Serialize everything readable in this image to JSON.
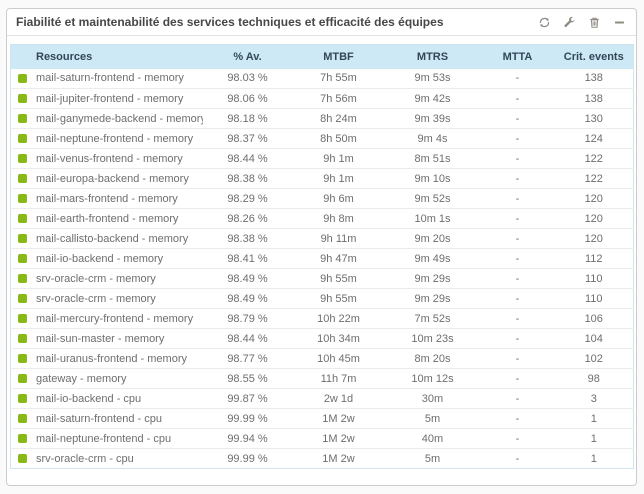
{
  "widget": {
    "title": "Fiabilité et maintenabilité des services techniques et efficacité des équipes",
    "toolbar": {
      "refresh": "refresh",
      "configure": "configure",
      "delete": "delete",
      "collapse": "collapse"
    }
  },
  "table": {
    "columns": [
      "Resources",
      "% Av.",
      "MTBF",
      "MTRS",
      "MTTA",
      "Crit. events"
    ],
    "rows": [
      {
        "status": "ok",
        "resource": "mail-saturn-frontend - memory",
        "availability": "98.03 %",
        "mtbf": "7h 55m",
        "mtrs": "9m 53s",
        "mtta": "-",
        "crit_events": "138"
      },
      {
        "status": "ok",
        "resource": "mail-jupiter-frontend - memory",
        "availability": "98.06 %",
        "mtbf": "7h 56m",
        "mtrs": "9m 42s",
        "mtta": "-",
        "crit_events": "138"
      },
      {
        "status": "ok",
        "resource": "mail-ganymede-backend - memory",
        "availability": "98.18 %",
        "mtbf": "8h 24m",
        "mtrs": "9m 39s",
        "mtta": "-",
        "crit_events": "130"
      },
      {
        "status": "ok",
        "resource": "mail-neptune-frontend - memory",
        "availability": "98.37 %",
        "mtbf": "8h 50m",
        "mtrs": "9m 4s",
        "mtta": "-",
        "crit_events": "124"
      },
      {
        "status": "ok",
        "resource": "mail-venus-frontend - memory",
        "availability": "98.44 %",
        "mtbf": "9h 1m",
        "mtrs": "8m 51s",
        "mtta": "-",
        "crit_events": "122"
      },
      {
        "status": "ok",
        "resource": "mail-europa-backend - memory",
        "availability": "98.38 %",
        "mtbf": "9h 1m",
        "mtrs": "9m 10s",
        "mtta": "-",
        "crit_events": "122"
      },
      {
        "status": "ok",
        "resource": "mail-mars-frontend - memory",
        "availability": "98.29 %",
        "mtbf": "9h 6m",
        "mtrs": "9m 52s",
        "mtta": "-",
        "crit_events": "120"
      },
      {
        "status": "ok",
        "resource": "mail-earth-frontend - memory",
        "availability": "98.26 %",
        "mtbf": "9h 8m",
        "mtrs": "10m 1s",
        "mtta": "-",
        "crit_events": "120"
      },
      {
        "status": "ok",
        "resource": "mail-callisto-backend - memory",
        "availability": "98.38 %",
        "mtbf": "9h 11m",
        "mtrs": "9m 20s",
        "mtta": "-",
        "crit_events": "120"
      },
      {
        "status": "ok",
        "resource": "mail-io-backend - memory",
        "availability": "98.41 %",
        "mtbf": "9h 47m",
        "mtrs": "9m 49s",
        "mtta": "-",
        "crit_events": "112"
      },
      {
        "status": "ok",
        "resource": "srv-oracle-crm - memory",
        "availability": "98.49 %",
        "mtbf": "9h 55m",
        "mtrs": "9m 29s",
        "mtta": "-",
        "crit_events": "110"
      },
      {
        "status": "ok",
        "resource": "srv-oracle-crm - memory",
        "availability": "98.49 %",
        "mtbf": "9h 55m",
        "mtrs": "9m 29s",
        "mtta": "-",
        "crit_events": "110"
      },
      {
        "status": "ok",
        "resource": "mail-mercury-frontend - memory",
        "availability": "98.79 %",
        "mtbf": "10h 22m",
        "mtrs": "7m 52s",
        "mtta": "-",
        "crit_events": "106"
      },
      {
        "status": "ok",
        "resource": "mail-sun-master - memory",
        "availability": "98.44 %",
        "mtbf": "10h 34m",
        "mtrs": "10m 23s",
        "mtta": "-",
        "crit_events": "104"
      },
      {
        "status": "ok",
        "resource": "mail-uranus-frontend - memory",
        "availability": "98.77 %",
        "mtbf": "10h 45m",
        "mtrs": "8m 20s",
        "mtta": "-",
        "crit_events": "102"
      },
      {
        "status": "ok",
        "resource": "gateway - memory",
        "availability": "98.55 %",
        "mtbf": "11h 7m",
        "mtrs": "10m 12s",
        "mtta": "-",
        "crit_events": "98"
      },
      {
        "status": "ok",
        "resource": "mail-io-backend - cpu",
        "availability": "99.87 %",
        "mtbf": "2w 1d",
        "mtrs": "30m",
        "mtta": "-",
        "crit_events": "3"
      },
      {
        "status": "ok",
        "resource": "mail-saturn-frontend - cpu",
        "availability": "99.99 %",
        "mtbf": "1M 2w",
        "mtrs": "5m",
        "mtta": "-",
        "crit_events": "1"
      },
      {
        "status": "ok",
        "resource": "mail-neptune-frontend - cpu",
        "availability": "99.94 %",
        "mtbf": "1M 2w",
        "mtrs": "40m",
        "mtta": "-",
        "crit_events": "1"
      },
      {
        "status": "ok",
        "resource": "srv-oracle-crm - cpu",
        "availability": "99.99 %",
        "mtbf": "1M 2w",
        "mtrs": "5m",
        "mtta": "-",
        "crit_events": "1"
      }
    ]
  },
  "colors": {
    "status_ok": "#88b917",
    "table_header_bg": "#cde9f5",
    "table_header_text": "#33475b",
    "table_border": "#cfe4ef",
    "row_text": "#6e6e6e",
    "icon_gray": "#8f8b82",
    "widget_border": "#cccccc"
  }
}
